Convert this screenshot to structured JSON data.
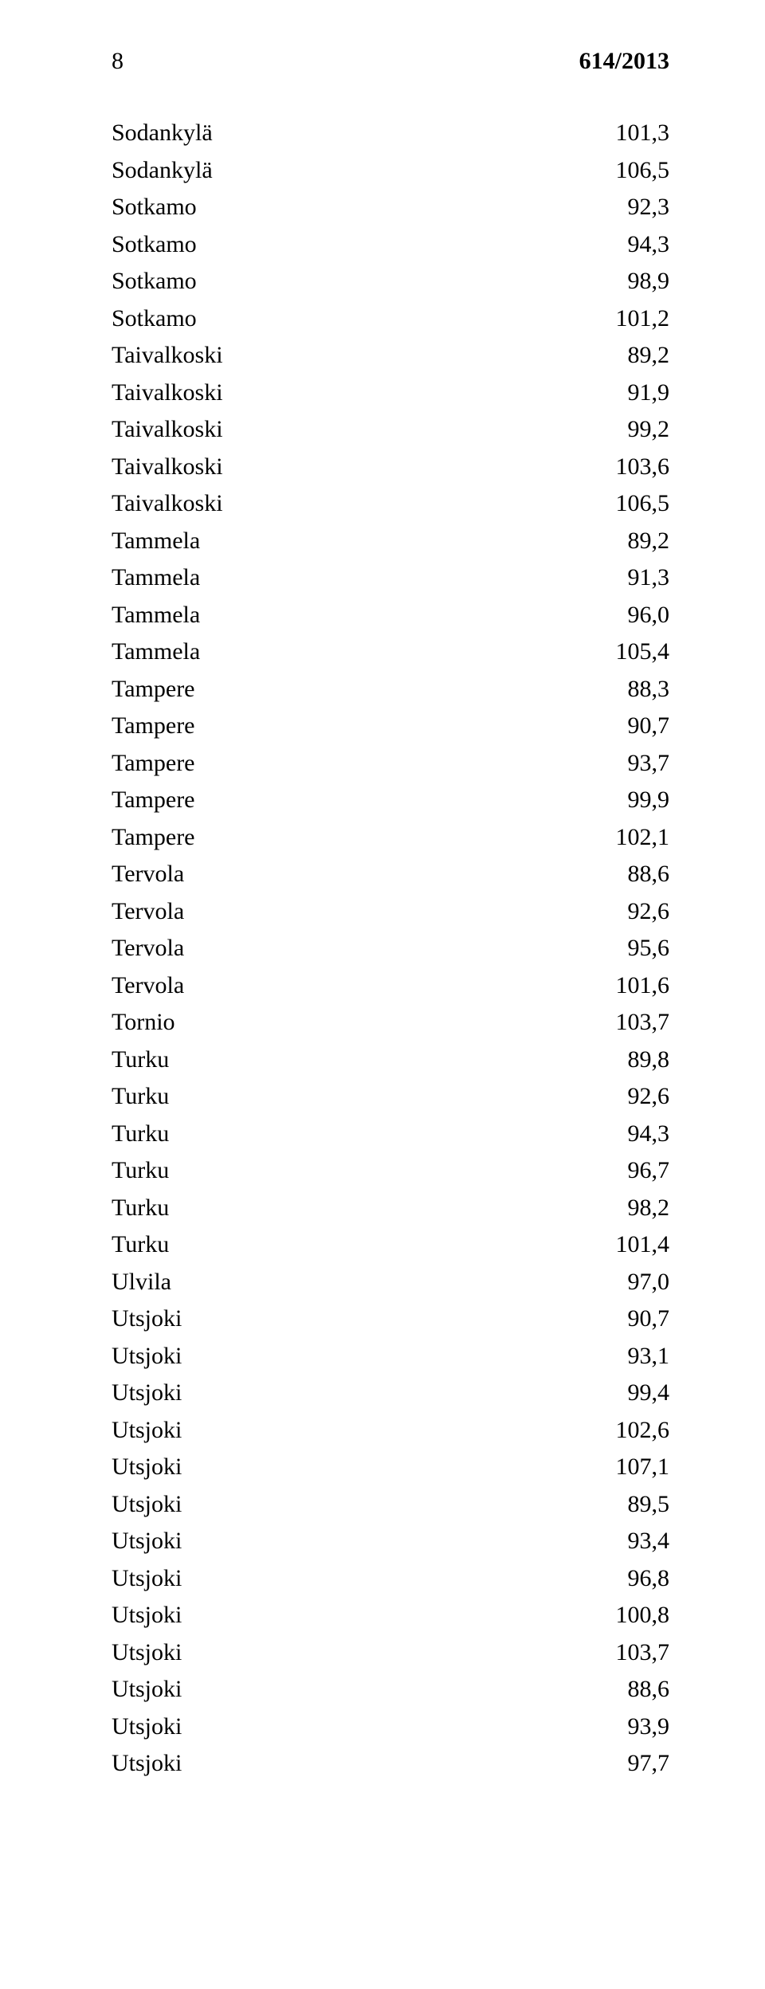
{
  "header": {
    "page_number": "8",
    "doc_ref": "614/2013"
  },
  "rows": [
    {
      "name": "Sodankylä",
      "value": "101,3"
    },
    {
      "name": "Sodankylä",
      "value": "106,5"
    },
    {
      "name": "Sotkamo",
      "value": "92,3"
    },
    {
      "name": "Sotkamo",
      "value": "94,3"
    },
    {
      "name": "Sotkamo",
      "value": "98,9"
    },
    {
      "name": "Sotkamo",
      "value": "101,2"
    },
    {
      "name": "Taivalkoski",
      "value": "89,2"
    },
    {
      "name": "Taivalkoski",
      "value": "91,9"
    },
    {
      "name": "Taivalkoski",
      "value": "99,2"
    },
    {
      "name": "Taivalkoski",
      "value": "103,6"
    },
    {
      "name": "Taivalkoski",
      "value": "106,5"
    },
    {
      "name": "Tammela",
      "value": "89,2"
    },
    {
      "name": "Tammela",
      "value": "91,3"
    },
    {
      "name": "Tammela",
      "value": "96,0"
    },
    {
      "name": "Tammela",
      "value": "105,4"
    },
    {
      "name": "Tampere",
      "value": "88,3"
    },
    {
      "name": "Tampere",
      "value": "90,7"
    },
    {
      "name": "Tampere",
      "value": "93,7"
    },
    {
      "name": "Tampere",
      "value": "99,9"
    },
    {
      "name": "Tampere",
      "value": "102,1"
    },
    {
      "name": "Tervola",
      "value": "88,6"
    },
    {
      "name": "Tervola",
      "value": "92,6"
    },
    {
      "name": "Tervola",
      "value": "95,6"
    },
    {
      "name": "Tervola",
      "value": "101,6"
    },
    {
      "name": "Tornio",
      "value": "103,7"
    },
    {
      "name": "Turku",
      "value": "89,8"
    },
    {
      "name": "Turku",
      "value": "92,6"
    },
    {
      "name": "Turku",
      "value": "94,3"
    },
    {
      "name": "Turku",
      "value": "96,7"
    },
    {
      "name": "Turku",
      "value": "98,2"
    },
    {
      "name": "Turku",
      "value": "101,4"
    },
    {
      "name": "Ulvila",
      "value": "97,0"
    },
    {
      "name": "Utsjoki",
      "value": "90,7"
    },
    {
      "name": "Utsjoki",
      "value": "93,1"
    },
    {
      "name": "Utsjoki",
      "value": "99,4"
    },
    {
      "name": "Utsjoki",
      "value": "102,6"
    },
    {
      "name": "Utsjoki",
      "value": "107,1"
    },
    {
      "name": "Utsjoki",
      "value": "89,5"
    },
    {
      "name": "Utsjoki",
      "value": "93,4"
    },
    {
      "name": "Utsjoki",
      "value": "96,8"
    },
    {
      "name": "Utsjoki",
      "value": "100,8"
    },
    {
      "name": "Utsjoki",
      "value": "103,7"
    },
    {
      "name": "Utsjoki",
      "value": "88,6"
    },
    {
      "name": "Utsjoki",
      "value": "93,9"
    },
    {
      "name": "Utsjoki",
      "value": "97,7"
    }
  ]
}
